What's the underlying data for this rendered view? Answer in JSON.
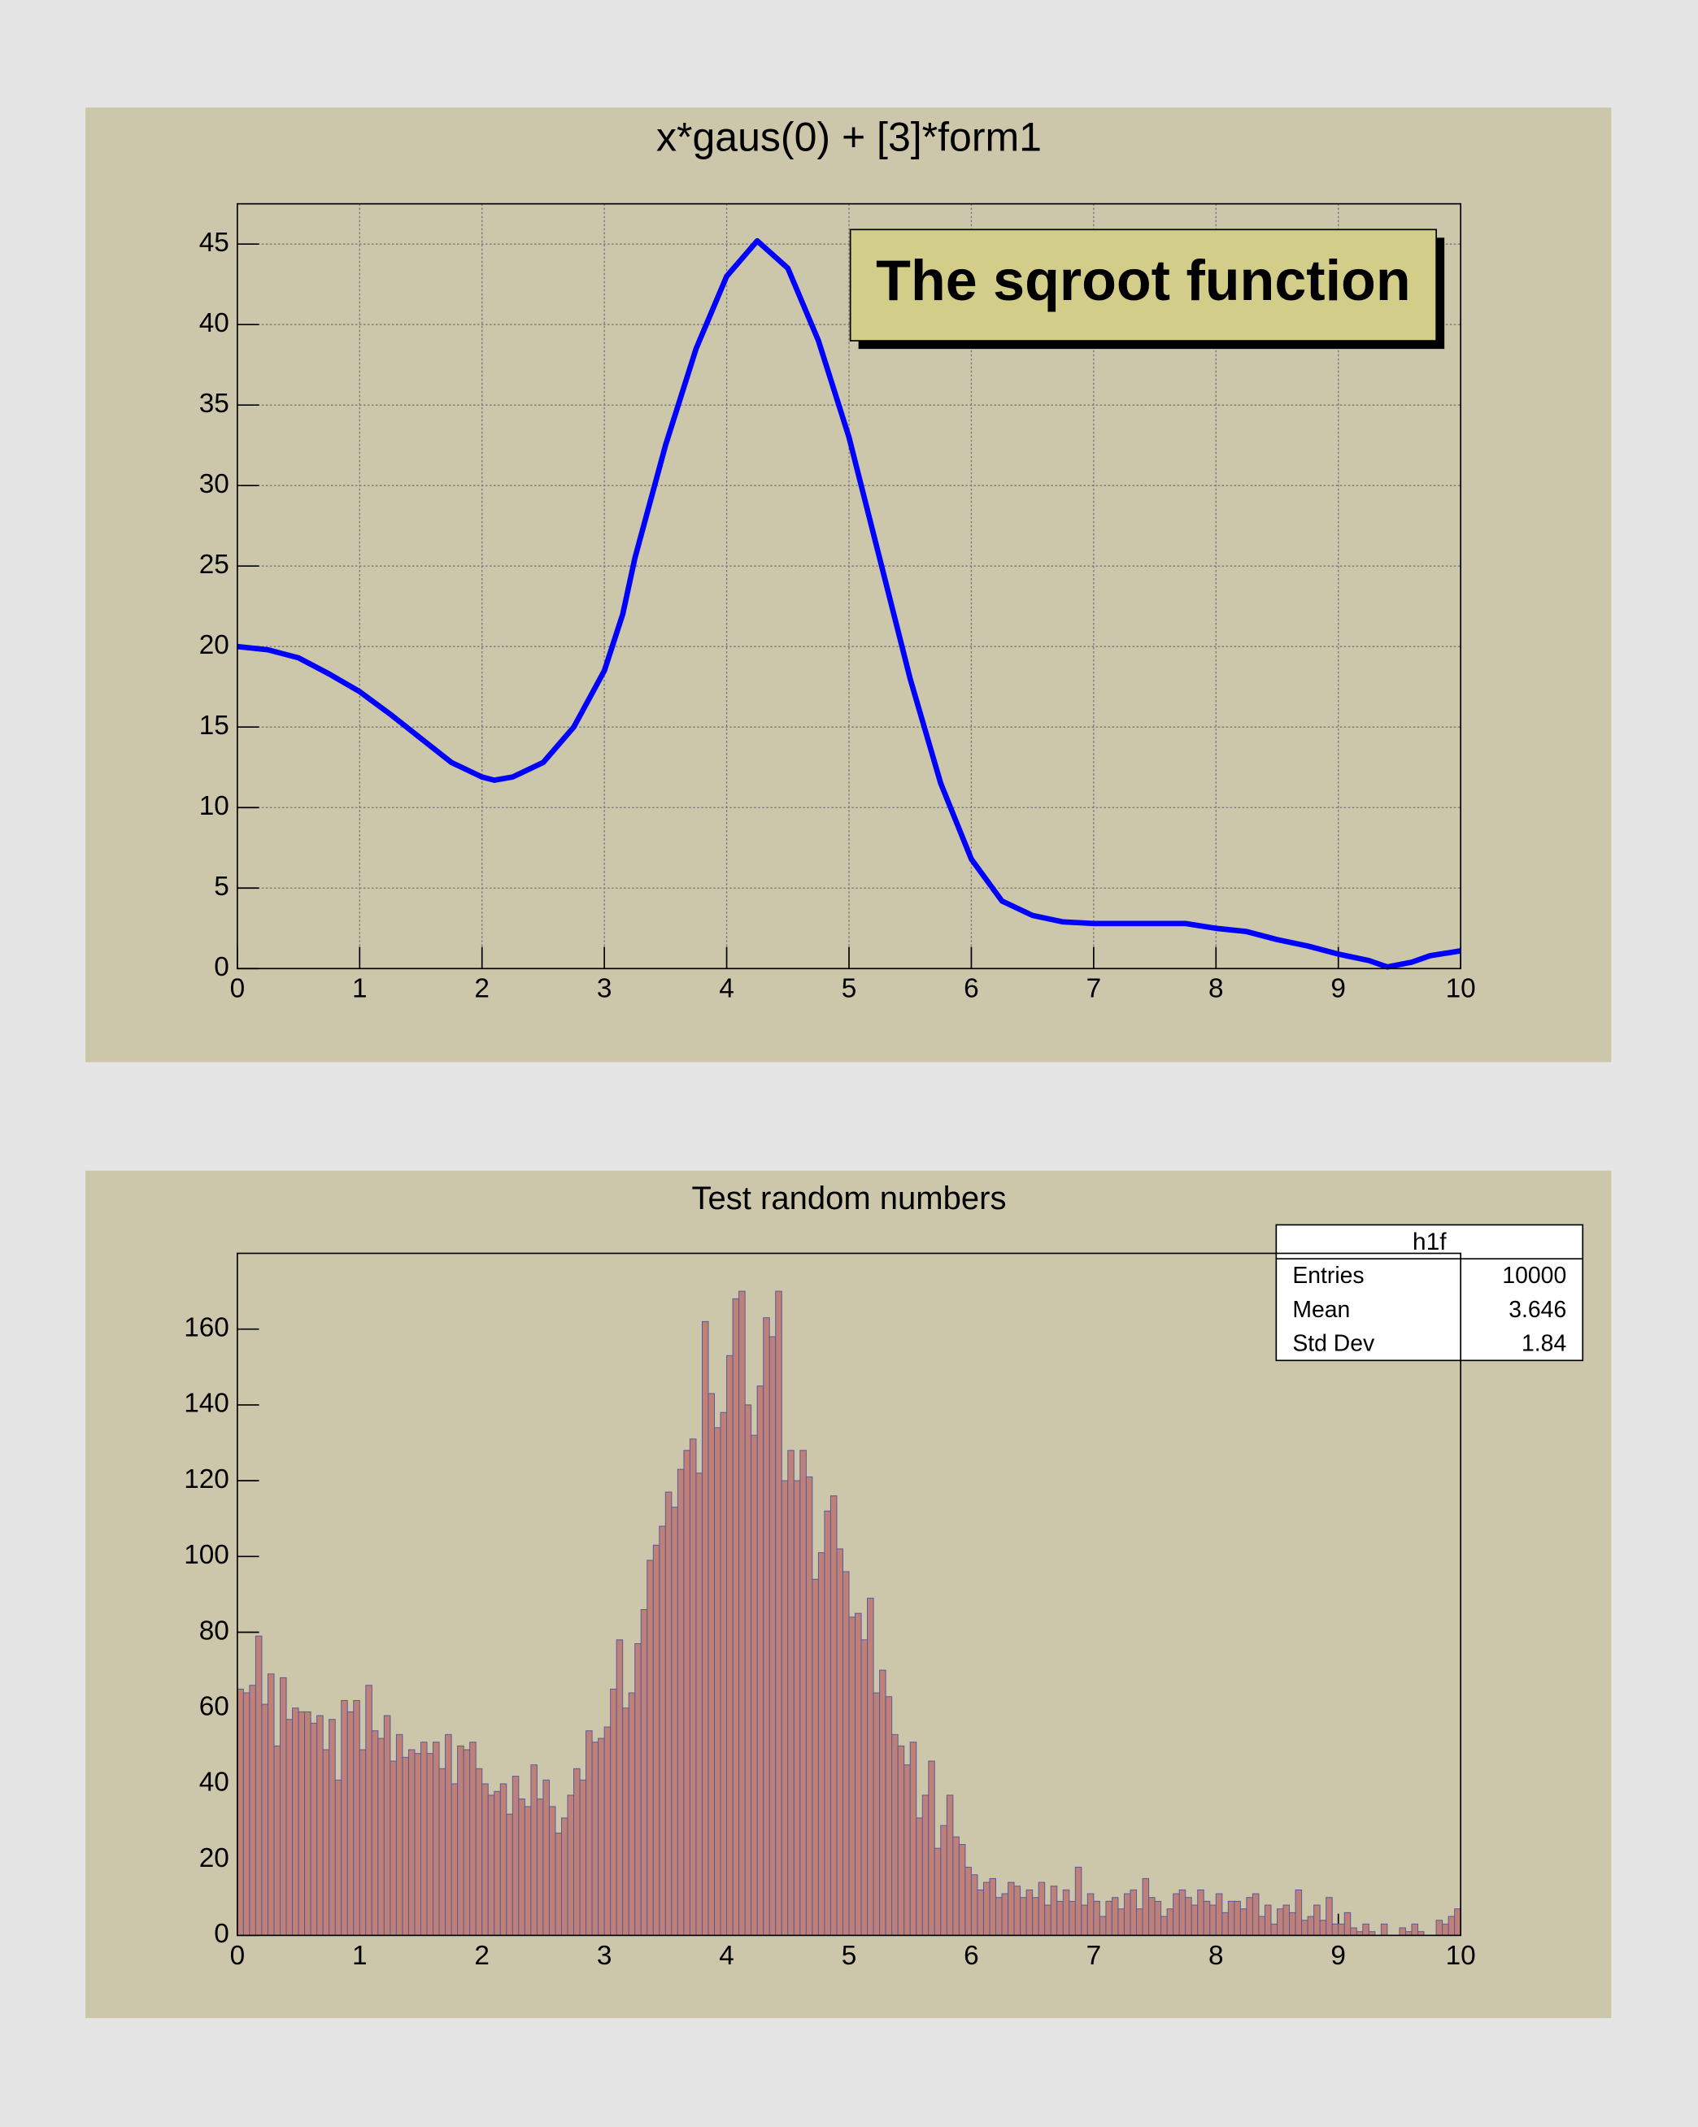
{
  "chart_data": [
    {
      "type": "line",
      "title": "x*gaus(0) + [3]*form1",
      "annotation": "The sqroot function",
      "color": "#0000ff",
      "grid": true,
      "x": [
        0,
        0.25,
        0.5,
        0.75,
        1,
        1.25,
        1.5,
        1.75,
        2,
        2.1,
        2.25,
        2.5,
        2.75,
        3,
        3.15,
        3.25,
        3.5,
        3.75,
        4,
        4.25,
        4.5,
        4.75,
        5,
        5.25,
        5.5,
        5.75,
        6,
        6.25,
        6.5,
        6.75,
        7,
        7.5,
        7.75,
        8,
        8.25,
        8.5,
        8.75,
        9,
        9.25,
        9.4,
        9.6,
        9.75,
        10
      ],
      "values": [
        20,
        19.8,
        19.3,
        18.3,
        17.2,
        15.8,
        14.3,
        12.8,
        11.9,
        11.7,
        11.9,
        12.8,
        15,
        18.5,
        22,
        25.5,
        32.5,
        38.5,
        43,
        45.2,
        43.5,
        39,
        33,
        25.5,
        18,
        11.5,
        6.8,
        4.2,
        3.3,
        2.9,
        2.8,
        2.8,
        2.8,
        2.5,
        2.3,
        1.8,
        1.4,
        0.9,
        0.5,
        0.1,
        0.4,
        0.8,
        1.1
      ],
      "xlim": [
        0,
        10
      ],
      "xticks": [
        0,
        1,
        2,
        3,
        4,
        5,
        6,
        7,
        8,
        9,
        10
      ],
      "ylim": [
        0,
        47.5
      ],
      "yticks": [
        0,
        5,
        10,
        15,
        20,
        25,
        30,
        35,
        40,
        45
      ]
    },
    {
      "type": "histogram",
      "title": "Test random numbers",
      "color": "#bf8077",
      "edge_color": "#5a5a9a",
      "grid": false,
      "bins": [
        0,
        0.05,
        0.1,
        0.15,
        0.2,
        0.25,
        0.3,
        0.35,
        0.4,
        0.45,
        0.5,
        0.55,
        0.6,
        0.65,
        0.7,
        0.75,
        0.8,
        0.85,
        0.9,
        0.95,
        1,
        1.05,
        1.1,
        1.15,
        1.2,
        1.25,
        1.3,
        1.35,
        1.4,
        1.45,
        1.5,
        1.55,
        1.6,
        1.65,
        1.7,
        1.75,
        1.8,
        1.85,
        1.9,
        1.95,
        2,
        2.05,
        2.1,
        2.15,
        2.2,
        2.25,
        2.3,
        2.35,
        2.4,
        2.45,
        2.5,
        2.55,
        2.6,
        2.65,
        2.7,
        2.75,
        2.8,
        2.85,
        2.9,
        2.95,
        3,
        3.05,
        3.1,
        3.15,
        3.2,
        3.25,
        3.3,
        3.35,
        3.4,
        3.45,
        3.5,
        3.55,
        3.6,
        3.65,
        3.7,
        3.75,
        3.8,
        3.85,
        3.9,
        3.95,
        4,
        4.05,
        4.1,
        4.15,
        4.2,
        4.25,
        4.3,
        4.35,
        4.4,
        4.45,
        4.5,
        4.55,
        4.6,
        4.65,
        4.7,
        4.75,
        4.8,
        4.85,
        4.9,
        4.95,
        5,
        5.05,
        5.1,
        5.15,
        5.2,
        5.25,
        5.3,
        5.35,
        5.4,
        5.45,
        5.5,
        5.55,
        5.6,
        5.65,
        5.7,
        5.75,
        5.8,
        5.85,
        5.9,
        5.95,
        6,
        6.05,
        6.1,
        6.15,
        6.2,
        6.25,
        6.3,
        6.35,
        6.4,
        6.45,
        6.5,
        6.55,
        6.6,
        6.65,
        6.7,
        6.75,
        6.8,
        6.85,
        6.9,
        6.95,
        7,
        7.05,
        7.1,
        7.15,
        7.2,
        7.25,
        7.3,
        7.35,
        7.4,
        7.45,
        7.5,
        7.55,
        7.6,
        7.65,
        7.7,
        7.75,
        7.8,
        7.85,
        7.9,
        7.95,
        8,
        8.05,
        8.1,
        8.15,
        8.2,
        8.25,
        8.3,
        8.35,
        8.4,
        8.45,
        8.5,
        8.55,
        8.6,
        8.65,
        8.7,
        8.75,
        8.8,
        8.85,
        8.9,
        8.95,
        9,
        9.05,
        9.1,
        9.15,
        9.2,
        9.25,
        9.3,
        9.35,
        9.4,
        9.45,
        9.5,
        9.55,
        9.6,
        9.65,
        9.7,
        9.75,
        9.8,
        9.85,
        9.9,
        9.95,
        10
      ],
      "values": [
        65,
        64,
        66,
        79,
        61,
        69,
        50,
        68,
        57,
        60,
        59,
        59,
        56,
        58,
        49,
        57,
        41,
        62,
        59,
        62,
        49,
        66,
        54,
        52,
        58,
        46,
        53,
        47,
        49,
        48,
        51,
        48,
        51,
        44,
        53,
        40,
        50,
        49,
        51,
        44,
        40,
        37,
        38,
        40,
        32,
        42,
        36,
        34,
        45,
        36,
        41,
        34,
        27,
        31,
        37,
        44,
        41,
        54,
        51,
        52,
        55,
        65,
        78,
        60,
        64,
        77,
        86,
        99,
        103,
        108,
        117,
        113,
        123,
        128,
        131,
        122,
        162,
        143,
        134,
        138,
        153,
        168,
        170,
        140,
        132,
        145,
        163,
        158,
        170,
        120,
        128,
        120,
        128,
        121,
        94,
        101,
        112,
        116,
        102,
        96,
        84,
        85,
        78,
        89,
        64,
        70,
        63,
        53,
        50,
        45,
        51,
        31,
        37,
        46,
        23,
        29,
        37,
        26,
        24,
        18,
        16,
        12,
        14,
        15,
        10,
        11,
        14,
        13,
        10,
        12,
        10,
        14,
        8,
        13,
        9,
        12,
        9,
        18,
        8,
        11,
        9,
        5,
        9,
        10,
        7,
        11,
        12,
        7,
        15,
        10,
        9,
        5,
        7,
        11,
        12,
        10,
        8,
        12,
        9,
        8,
        11,
        6,
        9,
        9,
        7,
        10,
        11,
        5,
        8,
        3,
        7,
        8,
        6,
        12,
        4,
        5,
        8,
        4,
        10,
        3,
        3,
        6,
        2,
        1,
        3,
        1,
        0,
        3,
        0,
        0,
        2,
        1,
        3,
        1,
        0,
        0,
        4,
        3,
        5,
        7
      ],
      "xlim": [
        0,
        10
      ],
      "xticks": [
        0,
        1,
        2,
        3,
        4,
        5,
        6,
        7,
        8,
        9,
        10
      ],
      "ylim": [
        0,
        180
      ],
      "yticks": [
        0,
        20,
        40,
        60,
        80,
        100,
        120,
        140,
        160
      ],
      "stats": {
        "title": "h1f",
        "rows": [
          [
            "Entries",
            10000
          ],
          [
            "Mean",
            3.646
          ],
          [
            "Std Dev",
            1.84
          ]
        ]
      }
    }
  ]
}
